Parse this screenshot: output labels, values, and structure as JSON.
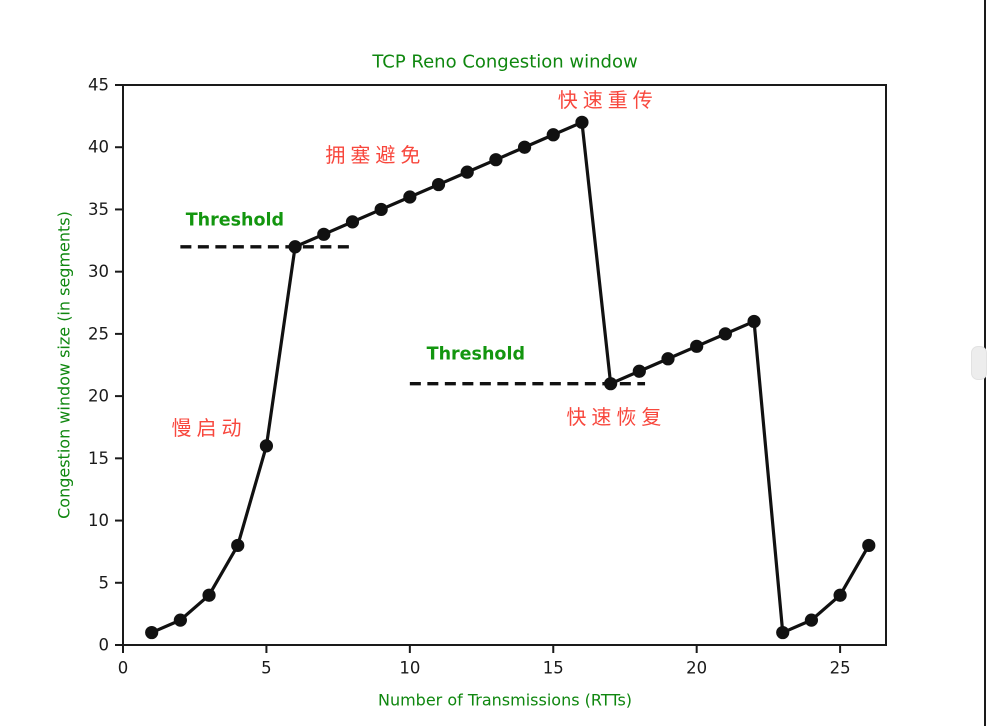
{
  "chart_data": {
    "type": "line",
    "title": "TCP Reno Congestion window",
    "xlabel": "Number of Transmissions (RTTs)",
    "ylabel": "Congestion window size (in segments)",
    "xlim": [
      0,
      26.6
    ],
    "ylim": [
      0,
      45
    ],
    "x_ticks": [
      0,
      5,
      10,
      15,
      20,
      25
    ],
    "y_ticks": [
      0,
      5,
      10,
      15,
      20,
      25,
      30,
      35,
      40,
      45
    ],
    "grid": false,
    "legend": "none",
    "series": [
      {
        "name": "congestion-window",
        "color": "#111111",
        "marker": "circle",
        "x": [
          1,
          2,
          3,
          4,
          5,
          6,
          7,
          8,
          9,
          10,
          11,
          12,
          13,
          14,
          15,
          16,
          17,
          18,
          19,
          20,
          21,
          22,
          23,
          24,
          25,
          26
        ],
        "y": [
          1,
          2,
          4,
          8,
          16,
          32,
          33,
          34,
          35,
          36,
          37,
          38,
          39,
          40,
          41,
          42,
          21,
          22,
          23,
          24,
          25,
          26,
          1,
          2,
          4,
          8
        ]
      }
    ],
    "threshold_lines": [
      {
        "y": 32,
        "x_start": 2.0,
        "x_end": 8.1,
        "style": "dashed",
        "color": "#111111"
      },
      {
        "y": 21,
        "x_start": 10.0,
        "x_end": 18.2,
        "style": "dashed",
        "color": "#111111"
      }
    ],
    "annotations": [
      {
        "id": "fast-retransmit-label",
        "text": "快速重传",
        "color": "#f8473d",
        "x": 16.9,
        "y": 43.8,
        "bold": false
      },
      {
        "id": "congestion-avoidance-label",
        "text": "拥塞避免",
        "color": "#f8473d",
        "x": 8.8,
        "y": 39.4,
        "bold": false
      },
      {
        "id": "slow-start-label",
        "text": "慢启动",
        "color": "#f8473d",
        "x": 3.0,
        "y": 17.4,
        "bold": false
      },
      {
        "id": "fast-recovery-label",
        "text": "快速恢复",
        "color": "#f8473d",
        "x": 17.2,
        "y": 18.3,
        "bold": false
      },
      {
        "id": "threshold-upper-label",
        "text": "Threshold",
        "color": "#13960f",
        "x": 3.9,
        "y": 34.1,
        "bold": true
      },
      {
        "id": "threshold-lower-label",
        "text": "Threshold",
        "color": "#13960f",
        "x": 12.3,
        "y": 23.3,
        "bold": true
      }
    ],
    "colors": {
      "title": "#0f870f",
      "axis_label": "#0f870f",
      "tick_label": "#1a1a1a",
      "spine": "#1a1a1a",
      "line": "#111111"
    }
  },
  "window": {
    "edge_line_color": "#1a1a1a",
    "scrollbar_thumb_color": "#ededed"
  }
}
